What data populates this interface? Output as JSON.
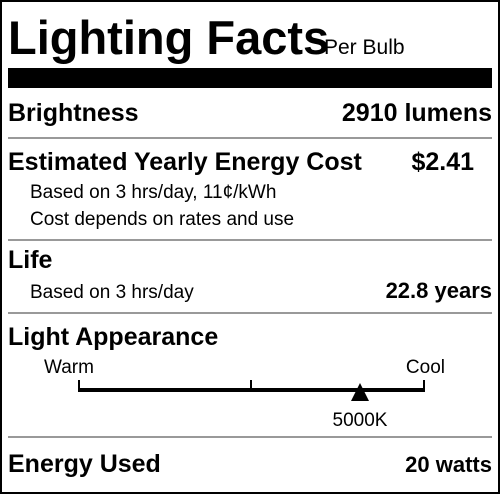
{
  "header": {
    "title": "Lighting Facts",
    "subtitle": "Per Bulb"
  },
  "brightness": {
    "label": "Brightness",
    "value": "2910 lumens"
  },
  "energy_cost": {
    "label": "Estimated Yearly Energy Cost",
    "value": "$2.41",
    "notes": [
      "Based on 3 hrs/day, 11¢/kWh",
      "Cost depends on rates and use"
    ]
  },
  "life": {
    "label": "Life",
    "note": "Based on 3 hrs/day",
    "value": "22.8 years"
  },
  "light_appearance": {
    "label": "Light Appearance",
    "warm": "Warm",
    "cool": "Cool",
    "marker": "5000K"
  },
  "energy_used": {
    "label": "Energy Used",
    "value": "20 watts"
  }
}
